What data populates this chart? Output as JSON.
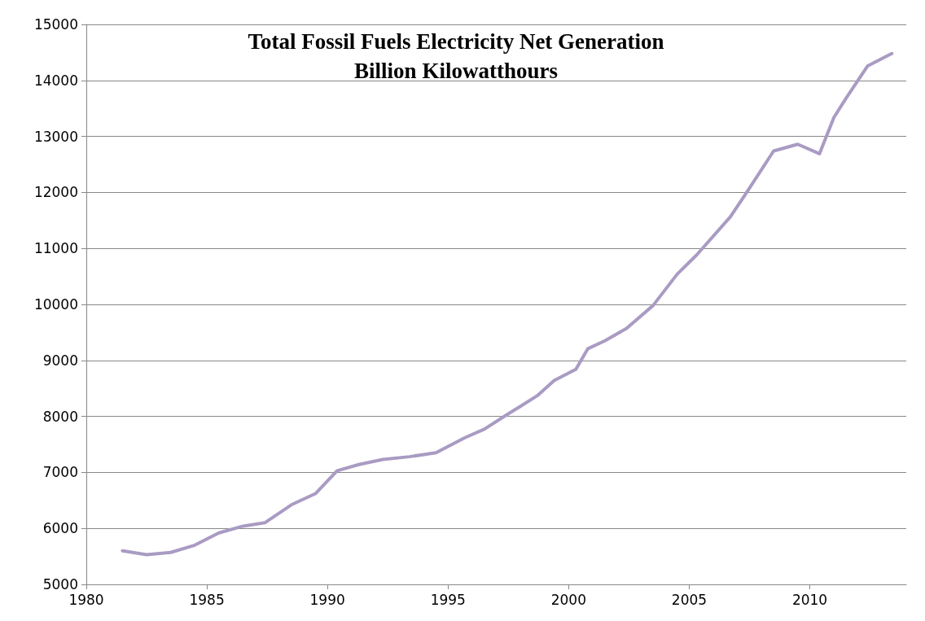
{
  "chart_data": {
    "type": "line",
    "title": "Total Fossil Fuels Electricity Net Generation\nBillion Kilowatthours",
    "x": [
      1981.5,
      1982.5,
      1983.5,
      1984.5,
      1985.5,
      1986.5,
      1987.4,
      1988.5,
      1989.5,
      1990.4,
      1991.3,
      1992.3,
      1993.4,
      1994.5,
      1995.7,
      1996.5,
      1997.4,
      1998.0,
      1998.7,
      1999.4,
      2000.3,
      2000.8,
      2001.5,
      2002.4,
      2003.5,
      2004.5,
      2005.3,
      2006.7,
      2007.4,
      2008.5,
      2009.5,
      2010.4,
      2011.0,
      2011.5,
      2012.4,
      2013.4
    ],
    "series": [
      {
        "color": "#a99bc3",
        "values": [
          5600,
          5530,
          5570,
          5700,
          5920,
          6040,
          6100,
          6420,
          6620,
          7030,
          7140,
          7230,
          7280,
          7350,
          7620,
          7770,
          8020,
          8180,
          8370,
          8640,
          8840,
          9210,
          9350,
          9570,
          9980,
          10540,
          10880,
          11560,
          12010,
          12740,
          12860,
          12690,
          13340,
          13680,
          14260,
          14480
        ]
      }
    ],
    "xlim": [
      1980,
      2014
    ],
    "xticks": [
      1980,
      1985,
      1990,
      1995,
      2000,
      2005,
      2010
    ],
    "ylim": [
      5000,
      15000
    ],
    "yticks": [
      5000,
      6000,
      7000,
      8000,
      9000,
      10000,
      11000,
      12000,
      13000,
      14000,
      15000
    ],
    "grid": "y",
    "marker": "none",
    "line_style": "solid"
  }
}
